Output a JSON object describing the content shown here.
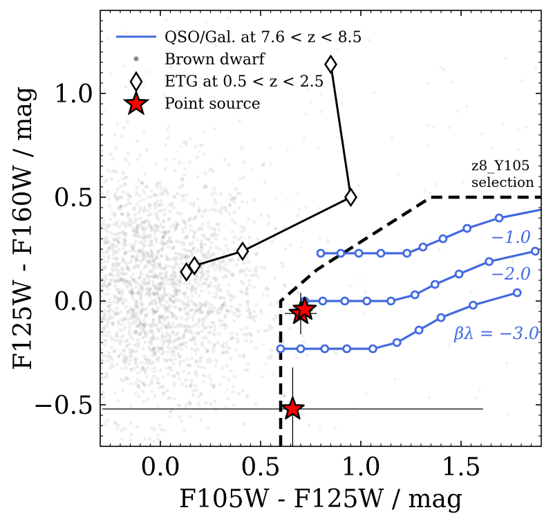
{
  "chart_data": {
    "type": "scatter",
    "xlabel": "F105W - F125W / mag",
    "ylabel": "F125W - F160W / mag",
    "xlim": [
      -0.3,
      1.9
    ],
    "ylim": [
      -0.7,
      1.4
    ],
    "xticks": [
      0.0,
      0.5,
      1.0,
      1.5
    ],
    "yticks": [
      -0.5,
      0.0,
      0.5,
      1.0
    ],
    "xtick_labels": [
      "0.0",
      "0.5",
      "1.0",
      "1.5"
    ],
    "ytick_labels": [
      "−0.5",
      "0.0",
      "0.5",
      "1.0"
    ],
    "grid": false,
    "legend": {
      "placement": "top-left",
      "entries": [
        {
          "label": "QSO/Gal. at 7.6 < z < 8.5",
          "marker": "line",
          "color": "#4169e1"
        },
        {
          "label": "Brown dwarf",
          "marker": "dot",
          "color": "#808080"
        },
        {
          "label": "ETG at 0.5 < z < 2.5",
          "marker": "diamond",
          "color": "#000000"
        },
        {
          "label": "Point source",
          "marker": "star",
          "color": "#ff0000"
        }
      ]
    },
    "selection_region": {
      "label_line1": "z8_Y105",
      "label_line2": "selection",
      "boundary": [
        [
          0.6,
          -0.7
        ],
        [
          0.6,
          0.0
        ],
        [
          0.78,
          0.15
        ],
        [
          1.35,
          0.5
        ],
        [
          1.9,
          0.5
        ]
      ]
    },
    "brown_dwarf_cloud": {
      "center": [
        -0.05,
        0.05
      ],
      "spread": [
        0.28,
        0.3
      ],
      "color": "#808080",
      "approx_count": 2400
    },
    "etg_track": {
      "x": [
        0.13,
        0.17,
        0.41,
        0.95,
        0.85
      ],
      "y": [
        0.14,
        0.17,
        0.24,
        0.5,
        1.14
      ]
    },
    "qso_tracks": [
      {
        "name": "−1.0",
        "x": [
          0.8,
          0.9,
          0.99,
          1.1,
          1.23,
          1.31,
          1.41,
          1.53,
          1.69,
          1.9
        ],
        "y": [
          0.23,
          0.23,
          0.23,
          0.23,
          0.23,
          0.26,
          0.3,
          0.35,
          0.4,
          0.44
        ]
      },
      {
        "name": "−2.0",
        "x": [
          0.72,
          0.81,
          0.92,
          1.03,
          1.15,
          1.27,
          1.37,
          1.49,
          1.64,
          1.87
        ],
        "y": [
          0.0,
          0.0,
          0.0,
          0.0,
          0.0,
          0.03,
          0.08,
          0.13,
          0.19,
          0.24
        ]
      },
      {
        "name": "βλ = −3.0",
        "x": [
          0.6,
          0.7,
          0.82,
          0.93,
          1.06,
          1.18,
          1.29,
          1.4,
          1.56,
          1.78
        ],
        "y": [
          -0.23,
          -0.23,
          -0.23,
          -0.23,
          -0.23,
          -0.2,
          -0.14,
          -0.08,
          -0.02,
          0.04
        ]
      }
    ],
    "point_sources": [
      {
        "x": 0.7,
        "y": -0.06,
        "xerr": 0.08,
        "yerr": 0.1
      },
      {
        "x": 0.72,
        "y": -0.04,
        "xerr": 0.0,
        "yerr": 0.0
      },
      {
        "x": 0.66,
        "y": -0.52,
        "xerr": 0.95,
        "yerr": 0.2
      }
    ],
    "colors": {
      "qso": "#4169e1",
      "etg": "#000000",
      "star_fill": "#ff0000",
      "brown_dwarf": "#808080",
      "selection": "#000000"
    }
  }
}
